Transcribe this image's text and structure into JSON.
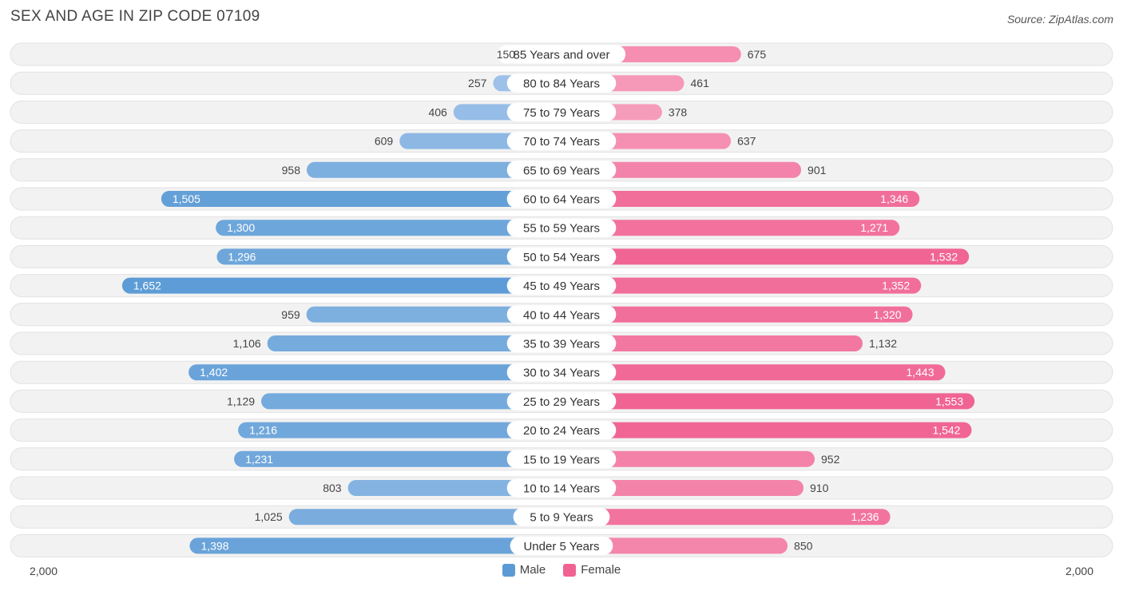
{
  "title": "SEX AND AGE IN ZIP CODE 07109",
  "source": "Source: ZipAtlas.com",
  "axis": {
    "left_label": "2,000",
    "right_label": "2,000"
  },
  "legend": [
    {
      "name": "Male",
      "color": "#5b9bd5"
    },
    {
      "name": "Female",
      "color": "#f06292"
    }
  ],
  "chart_data": {
    "type": "bar",
    "orientation": "horizontal-butterfly",
    "categories": [
      "85 Years and over",
      "80 to 84 Years",
      "75 to 79 Years",
      "70 to 74 Years",
      "65 to 69 Years",
      "60 to 64 Years",
      "55 to 59 Years",
      "50 to 54 Years",
      "45 to 49 Years",
      "40 to 44 Years",
      "35 to 39 Years",
      "30 to 34 Years",
      "25 to 29 Years",
      "20 to 24 Years",
      "15 to 19 Years",
      "10 to 14 Years",
      "5 to 9 Years",
      "Under 5 Years"
    ],
    "series": [
      {
        "name": "Male",
        "values": [
          150,
          257,
          406,
          609,
          958,
          1505,
          1300,
          1296,
          1652,
          959,
          1106,
          1402,
          1129,
          1216,
          1231,
          803,
          1025,
          1398
        ],
        "labels": [
          "150",
          "257",
          "406",
          "609",
          "958",
          "1,505",
          "1,300",
          "1,296",
          "1,652",
          "959",
          "1,106",
          "1,402",
          "1,129",
          "1,216",
          "1,231",
          "803",
          "1,025",
          "1,398"
        ]
      },
      {
        "name": "Female",
        "values": [
          675,
          461,
          378,
          637,
          901,
          1346,
          1271,
          1532,
          1352,
          1320,
          1132,
          1443,
          1553,
          1542,
          952,
          910,
          1236,
          850
        ],
        "labels": [
          "675",
          "461",
          "378",
          "637",
          "901",
          "1,346",
          "1,271",
          "1,532",
          "1,352",
          "1,320",
          "1,132",
          "1,443",
          "1,553",
          "1,542",
          "952",
          "910",
          "1,236",
          "850"
        ]
      }
    ],
    "xlim": [
      -2000,
      2000
    ]
  }
}
